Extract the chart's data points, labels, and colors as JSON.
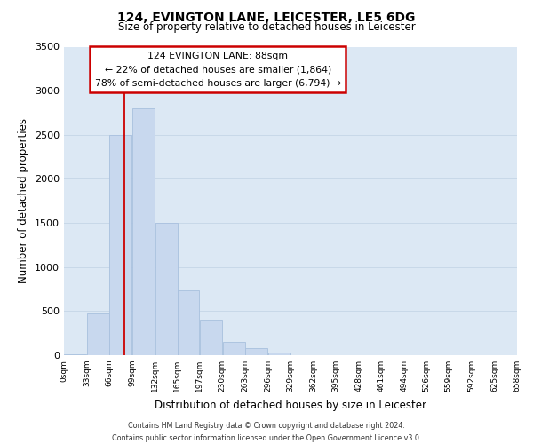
{
  "title": "124, EVINGTON LANE, LEICESTER, LE5 6DG",
  "subtitle": "Size of property relative to detached houses in Leicester",
  "xlabel": "Distribution of detached houses by size in Leicester",
  "ylabel": "Number of detached properties",
  "bin_edges": [
    0,
    33,
    66,
    99,
    132,
    165,
    197,
    230,
    263,
    296,
    329,
    362,
    395,
    428,
    461,
    494,
    526,
    559,
    592,
    625,
    658
  ],
  "bin_labels": [
    "0sqm",
    "33sqm",
    "66sqm",
    "99sqm",
    "132sqm",
    "165sqm",
    "197sqm",
    "230sqm",
    "263sqm",
    "296sqm",
    "329sqm",
    "362sqm",
    "395sqm",
    "428sqm",
    "461sqm",
    "494sqm",
    "526sqm",
    "559sqm",
    "592sqm",
    "625sqm",
    "658sqm"
  ],
  "bar_heights": [
    15,
    470,
    2500,
    2800,
    1500,
    740,
    400,
    155,
    80,
    30,
    0,
    0,
    0,
    0,
    0,
    0,
    0,
    0,
    0,
    0
  ],
  "bar_color": "#c8d8ee",
  "bar_edge_color": "#a8c0de",
  "ylim": [
    0,
    3500
  ],
  "yticks": [
    0,
    500,
    1000,
    1500,
    2000,
    2500,
    3000,
    3500
  ],
  "vline_x": 88,
  "vline_color": "#cc0000",
  "annotation_title": "124 EVINGTON LANE: 88sqm",
  "annotation_line1": "← 22% of detached houses are smaller (1,864)",
  "annotation_line2": "78% of semi-detached houses are larger (6,794) →",
  "annotation_box_color": "#cc0000",
  "grid_color": "#c8d8e8",
  "plot_bg_color": "#dce8f4",
  "footer_line1": "Contains HM Land Registry data © Crown copyright and database right 2024.",
  "footer_line2": "Contains public sector information licensed under the Open Government Licence v3.0."
}
